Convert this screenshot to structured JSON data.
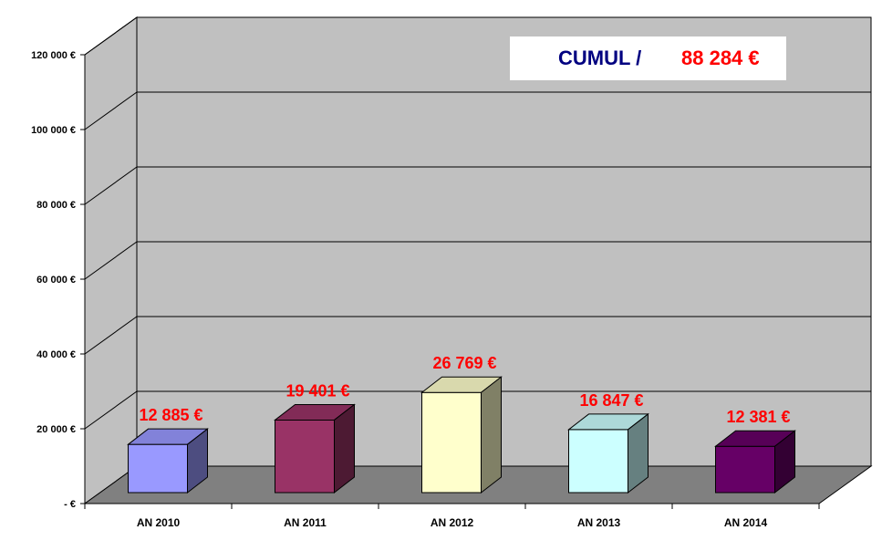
{
  "cumul": {
    "label": "CUMUL /",
    "value": "88 284 €"
  },
  "chart_data": {
    "type": "bar",
    "style": "3d",
    "categories": [
      "AN 2010",
      "AN 2011",
      "AN 2012",
      "AN 2013",
      "AN 2014"
    ],
    "values": [
      12885,
      19401,
      26769,
      16847,
      12381
    ],
    "data_labels": [
      "12 885 €",
      "19 401 €",
      "26 769 €",
      "16 847 €",
      "12 381 €"
    ],
    "bar_colors": [
      "#9999ff",
      "#993366",
      "#ffffcc",
      "#ccffff",
      "#660066"
    ],
    "yticks": [
      {
        "value": 0,
        "label": "-   €"
      },
      {
        "value": 20000,
        "label": "20 000 €"
      },
      {
        "value": 40000,
        "label": "40 000 €"
      },
      {
        "value": 60000,
        "label": "60 000 €"
      },
      {
        "value": 80000,
        "label": "80 000 €"
      },
      {
        "value": 100000,
        "label": "100 000 €"
      },
      {
        "value": 120000,
        "label": "120 000 €"
      }
    ],
    "ylim": [
      0,
      120000
    ],
    "grid": true,
    "title": "",
    "xlabel": "",
    "ylabel": "",
    "colors": {
      "wall": "#c0c0c0",
      "floor": "#808080",
      "label": "#ff0000",
      "cumul_label": "#000080"
    }
  }
}
